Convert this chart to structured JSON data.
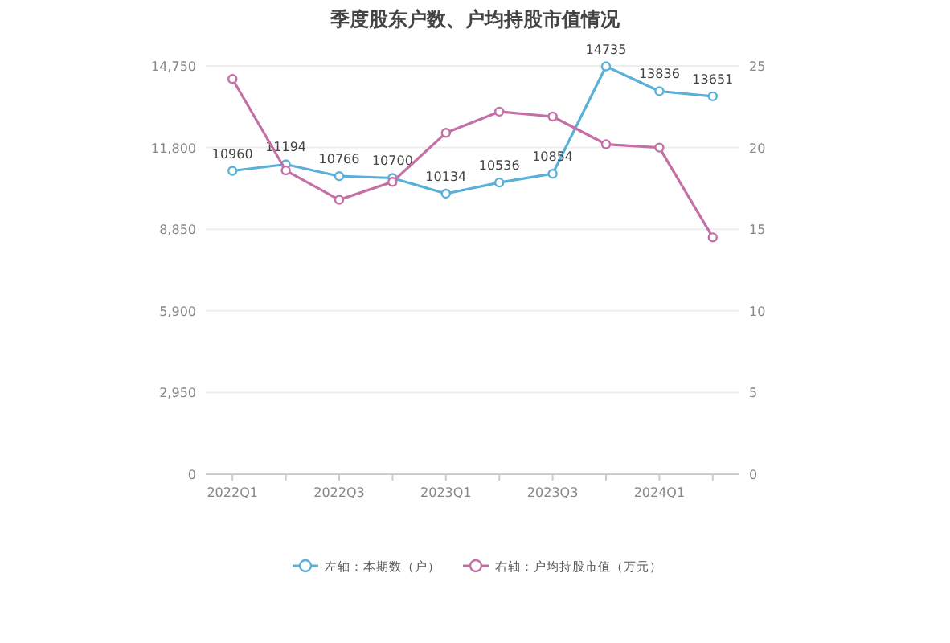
{
  "chart_data": {
    "type": "line",
    "title": "季度股东户数、户均持股市值情况",
    "categories": [
      "2022Q1",
      null,
      "2022Q3",
      null,
      "2023Q1",
      null,
      "2023Q3",
      null,
      "2024Q1",
      null
    ],
    "series": [
      {
        "name": "左轴：本期数（户）",
        "color": "#5ab1d8",
        "values": [
          10960,
          11194,
          10766,
          10700,
          10134,
          10536,
          10854,
          14735,
          13836,
          13651
        ],
        "value_labels": [
          "10960",
          "11194",
          "10766",
          "10700",
          "10134",
          "10536",
          "10854",
          "14735",
          "13836",
          "13651"
        ]
      },
      {
        "name": "右轴：户均持股市值（万元）",
        "color": "#c46fa6",
        "axis": "y2",
        "values": [
          24.2,
          18.6,
          16.8,
          17.9,
          20.9,
          22.2,
          21.9,
          20.2,
          20.0,
          14.5
        ]
      }
    ],
    "ylim": [
      0,
      14750
    ],
    "yticks": [
      0,
      {
        "value": 2950,
        "label": "2,950"
      },
      {
        "value": 5900,
        "label": "5,900"
      },
      {
        "value": 8850,
        "label": "8,850"
      },
      {
        "value": 11800,
        "label": "11,800"
      },
      {
        "value": 14750,
        "label": "14,750"
      }
    ],
    "y2lim": [
      0,
      25
    ],
    "y2ticks": [
      0,
      5,
      10,
      15,
      20,
      25
    ],
    "grid": "y",
    "legend": "bottom",
    "marker": "circle",
    "line_style": "solid"
  }
}
